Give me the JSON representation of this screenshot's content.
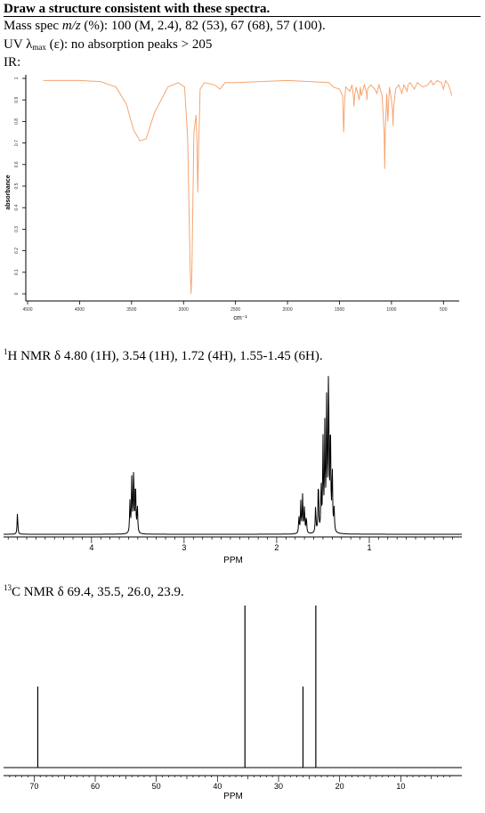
{
  "header": {
    "title": "Draw a structure consistent with these spectra.",
    "mass_prefix": "Mass spec ",
    "mass_mz": "m/z",
    "mass_rest": " (%): 100 (M, 2.4), 82 (53), 67 (68), 57 (100).",
    "uv_prefix": "UV λ",
    "uv_sub": "max",
    "uv_rest": " (ε): no absorption peaks > 205",
    "ir_label": "IR:"
  },
  "chart_data": [
    {
      "type": "line",
      "title": "",
      "xlabel": "cm⁻¹",
      "ylabel": "absorbance",
      "xlim": [
        4500,
        400
      ],
      "ylim": [
        0,
        1
      ],
      "x_ticks": [
        4500,
        4000,
        3500,
        3000,
        2500,
        2000,
        1500,
        1000,
        500
      ],
      "y_ticks": [
        0,
        0.1,
        0.2,
        0.3,
        0.4,
        0.5,
        0.6,
        0.7,
        0.8,
        0.9,
        1
      ],
      "grid": false,
      "color": "#f5a570",
      "series": [
        {
          "x": [
            4350,
            4000,
            3800,
            3650,
            3550,
            3480,
            3420,
            3360,
            3280,
            3150,
            3050,
            2990,
            2960,
            2935,
            2928,
            2920,
            2900,
            2880,
            2870,
            2863,
            2855,
            2840,
            2800,
            2700,
            2650,
            2600,
            2500,
            2000,
            1600,
            1560,
            1500,
            1470,
            1460,
            1450,
            1440,
            1400,
            1380,
            1365,
            1360,
            1355,
            1340,
            1310,
            1300,
            1290,
            1260,
            1240,
            1235,
            1230,
            1200,
            1160,
            1140,
            1120,
            1090,
            1070,
            1065,
            1060,
            1045,
            1035,
            1020,
            1000,
            990,
            985,
            980,
            960,
            930,
            900,
            880,
            860,
            850,
            840,
            820,
            780,
            750,
            700,
            650,
            620,
            600,
            560,
            520,
            500,
            480,
            450,
            420
          ],
          "y": [
            0.99,
            0.99,
            0.985,
            0.96,
            0.88,
            0.76,
            0.71,
            0.72,
            0.84,
            0.96,
            0.98,
            0.96,
            0.72,
            0.1,
            0.0,
            0.1,
            0.75,
            0.83,
            0.7,
            0.47,
            0.68,
            0.95,
            0.98,
            0.97,
            0.95,
            0.98,
            0.98,
            0.99,
            0.98,
            0.96,
            0.95,
            0.92,
            0.75,
            0.9,
            0.96,
            0.94,
            0.97,
            0.91,
            0.87,
            0.92,
            0.96,
            0.9,
            0.96,
            0.92,
            0.97,
            0.93,
            0.9,
            0.95,
            0.97,
            0.95,
            0.93,
            0.97,
            0.92,
            0.75,
            0.58,
            0.75,
            0.93,
            0.8,
            0.96,
            0.9,
            0.85,
            0.78,
            0.86,
            0.95,
            0.97,
            0.93,
            0.97,
            0.95,
            0.94,
            0.97,
            0.98,
            0.95,
            0.98,
            0.96,
            0.97,
            0.99,
            0.97,
            0.99,
            0.98,
            0.95,
            0.99,
            0.97,
            0.92
          ]
        }
      ]
    },
    {
      "type": "line",
      "title_prefix": "1",
      "title": "H NMR δ 4.80 (1H), 3.54 (1H), 1.72 (4H), 1.55-1.45 (6H).",
      "xlabel": "PPM",
      "xlim": [
        4.95,
        0.0
      ],
      "x_ticks": [
        4,
        3,
        2,
        1
      ],
      "grid": false,
      "color": "#000000",
      "peaks": [
        {
          "ppm": 4.8,
          "height": 0.13
        },
        {
          "ppm": 3.585,
          "height": 0.19
        },
        {
          "ppm": 3.565,
          "height": 0.34
        },
        {
          "ppm": 3.545,
          "height": 0.39
        },
        {
          "ppm": 3.525,
          "height": 0.31
        },
        {
          "ppm": 3.505,
          "height": 0.17
        },
        {
          "ppm": 1.76,
          "height": 0.1
        },
        {
          "ppm": 1.74,
          "height": 0.19
        },
        {
          "ppm": 1.72,
          "height": 0.23
        },
        {
          "ppm": 1.7,
          "height": 0.16
        },
        {
          "ppm": 1.68,
          "height": 0.1
        },
        {
          "ppm": 1.58,
          "height": 0.16
        },
        {
          "ppm": 1.55,
          "height": 0.32
        },
        {
          "ppm": 1.52,
          "height": 0.28
        },
        {
          "ppm": 1.5,
          "height": 0.55
        },
        {
          "ppm": 1.48,
          "height": 0.62
        },
        {
          "ppm": 1.46,
          "height": 0.8
        },
        {
          "ppm": 1.44,
          "height": 1.0
        },
        {
          "ppm": 1.42,
          "height": 0.66
        },
        {
          "ppm": 1.4,
          "height": 0.38
        },
        {
          "ppm": 1.38,
          "height": 0.14
        }
      ]
    },
    {
      "type": "bar",
      "title_prefix": "13",
      "title": "C NMR δ 69.4, 35.5, 26.0, 23.9.",
      "xlabel": "PPM",
      "xlim": [
        75,
        0
      ],
      "x_ticks": [
        70,
        60,
        50,
        40,
        30,
        20,
        10
      ],
      "grid": false,
      "color": "#000000",
      "peaks": [
        {
          "ppm": 69.4,
          "height": 0.5
        },
        {
          "ppm": 35.5,
          "height": 1.0
        },
        {
          "ppm": 26.0,
          "height": 0.5
        },
        {
          "ppm": 23.9,
          "height": 1.0
        }
      ]
    }
  ]
}
